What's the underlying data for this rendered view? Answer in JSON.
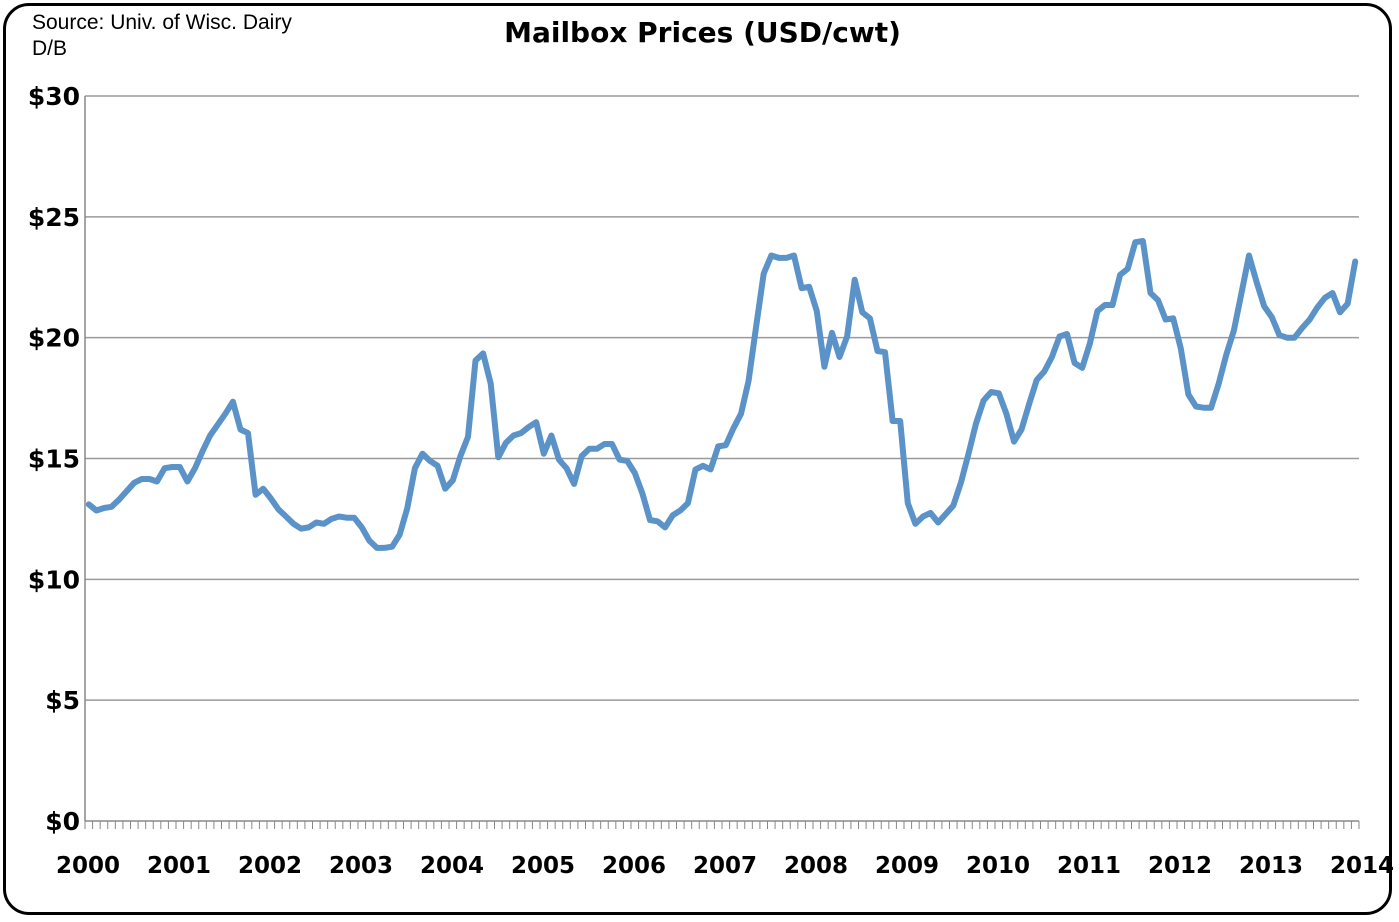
{
  "source_lines": [
    "Source: Univ. of Wisc. Dairy",
    "D/B"
  ],
  "title": "Mailbox Prices (USD/cwt)",
  "chart_data": {
    "type": "line",
    "title": "Mailbox Prices (USD/cwt)",
    "xlabel": "",
    "ylabel": "",
    "ylim": [
      0,
      30
    ],
    "xlim": [
      2000,
      2014
    ],
    "grid": true,
    "legend": "none",
    "line_color": "#5b93c9",
    "y_ticks": [
      0,
      5,
      10,
      15,
      20,
      25,
      30
    ],
    "y_tick_labels": [
      "$0",
      "$5",
      "$10",
      "$15",
      "$20",
      "$25",
      "$30"
    ],
    "x_ticks": [
      2000,
      2001,
      2002,
      2003,
      2004,
      2005,
      2006,
      2007,
      2008,
      2009,
      2010,
      2011,
      2012,
      2013,
      2014
    ],
    "x_tick_labels": [
      "2000",
      "2001",
      "2002",
      "2003",
      "2004",
      "2005",
      "2006",
      "2007",
      "2008",
      "2009",
      "2010",
      "2011",
      "2012",
      "2013",
      "2014"
    ],
    "series": [
      {
        "start": "2000-01",
        "frequency": "monthly",
        "values": [
          13.1,
          12.85,
          12.95,
          13.0,
          13.3,
          13.65,
          14.0,
          14.15,
          14.15,
          14.05,
          14.6,
          14.65,
          14.65,
          14.05,
          14.6,
          15.3,
          15.95,
          16.4,
          16.85,
          17.35,
          16.2,
          16.05,
          13.5,
          13.75,
          13.35,
          12.9,
          12.6,
          12.3,
          12.1,
          12.15,
          12.35,
          12.3,
          12.5,
          12.6,
          12.55,
          12.55,
          12.15,
          11.6,
          11.3,
          11.3,
          11.35,
          11.85,
          12.95,
          14.6,
          15.2,
          14.9,
          14.7,
          13.75,
          14.1,
          15.1,
          15.9,
          19.05,
          19.35,
          18.1,
          15.05,
          15.65,
          15.95,
          16.05,
          16.3,
          16.5,
          15.2,
          15.95,
          14.95,
          14.6,
          13.95,
          15.1,
          15.4,
          15.4,
          15.6,
          15.6,
          14.95,
          14.9,
          14.4,
          13.55,
          12.45,
          12.4,
          12.15,
          12.65,
          12.85,
          13.15,
          14.55,
          14.7,
          14.55,
          15.5,
          15.55,
          16.25,
          16.85,
          18.2,
          20.45,
          22.65,
          23.4,
          23.3,
          23.3,
          23.4,
          22.05,
          22.1,
          21.1,
          18.8,
          20.2,
          19.2,
          20.05,
          22.4,
          21.05,
          20.8,
          19.45,
          19.4,
          16.55,
          16.55,
          13.15,
          12.3,
          12.6,
          12.75,
          12.35,
          12.7,
          13.05,
          14.0,
          15.2,
          16.45,
          17.4,
          17.75,
          17.7,
          16.85,
          15.7,
          16.2,
          17.25,
          18.25,
          18.6,
          19.2,
          20.05,
          20.15,
          18.95,
          18.75,
          19.75,
          21.1,
          21.35,
          21.35,
          22.6,
          22.85,
          23.95,
          24.0,
          21.85,
          21.55,
          20.75,
          20.8,
          19.55,
          17.65,
          17.15,
          17.1,
          17.1,
          18.1,
          19.3,
          20.3,
          21.85,
          23.4,
          22.3,
          21.3,
          20.85,
          20.1,
          20.0,
          20.0,
          20.4,
          20.75,
          21.25,
          21.65,
          21.85,
          21.05,
          21.4,
          23.15
        ]
      }
    ]
  }
}
